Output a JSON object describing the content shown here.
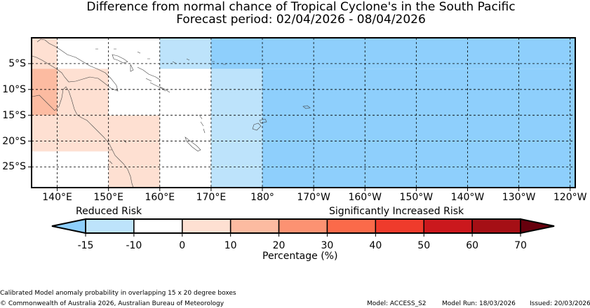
{
  "title": {
    "line1": "Difference from normal chance of Tropical Cyclone's in the South Pacific",
    "line2": "Forecast period: 02/04/2026 - 08/04/2026"
  },
  "map": {
    "lon_range": [
      135,
      241
    ],
    "lat_range": [
      0,
      -29
    ],
    "lon_ticks": [
      {
        "lon": 140,
        "label": "140°E"
      },
      {
        "lon": 150,
        "label": "150°E"
      },
      {
        "lon": 160,
        "label": "160°E"
      },
      {
        "lon": 170,
        "label": "170°E"
      },
      {
        "lon": 180,
        "label": "180°"
      },
      {
        "lon": 190,
        "label": "170°W"
      },
      {
        "lon": 200,
        "label": "160°W"
      },
      {
        "lon": 210,
        "label": "150°W"
      },
      {
        "lon": 220,
        "label": "140°W"
      },
      {
        "lon": 230,
        "label": "130°W"
      },
      {
        "lon": 240,
        "label": "120°W"
      }
    ],
    "lat_ticks": [
      {
        "lat": -5,
        "label": "5°S"
      },
      {
        "lat": -10,
        "label": "10°S"
      },
      {
        "lat": -15,
        "label": "15°S"
      },
      {
        "lat": -20,
        "label": "20°S"
      },
      {
        "lat": -25,
        "label": "25°S"
      }
    ],
    "cells": [
      {
        "lon0": 135,
        "lon1": 140,
        "lat0": 0,
        "lat1": -6,
        "value": 5
      },
      {
        "lon0": 135,
        "lon1": 140,
        "lat0": -6,
        "lat1": -15,
        "value": 15
      },
      {
        "lon0": 140,
        "lon1": 150,
        "lat0": -6,
        "lat1": -15,
        "value": 5
      },
      {
        "lon0": 135,
        "lon1": 150,
        "lat0": -15,
        "lat1": -22,
        "value": 5
      },
      {
        "lon0": 150,
        "lon1": 160,
        "lat0": -15,
        "lat1": -29,
        "value": 5
      },
      {
        "lon0": 160,
        "lon1": 170,
        "lat0": 0,
        "lat1": -6,
        "value": -12
      },
      {
        "lon0": 170,
        "lon1": 180,
        "lat0": -6,
        "lat1": -29,
        "value": -12
      },
      {
        "lon0": 170,
        "lon1": 241,
        "lat0": 0,
        "lat1": -6,
        "value": -18
      },
      {
        "lon0": 180,
        "lon1": 241,
        "lat0": -6,
        "lat1": -29,
        "value": -18
      }
    ]
  },
  "colorbar": {
    "reduced_label": "Reduced Risk",
    "increased_label": "Significantly Increased Risk",
    "tick_labels": [
      "-15",
      "-10",
      "0",
      "10",
      "20",
      "30",
      "40",
      "50",
      "60",
      "70"
    ],
    "bin_colors": [
      "#bde3fb",
      "#ffffff",
      "#fee0d2",
      "#fcbba1",
      "#fc9272",
      "#fb6a4a",
      "#ef3b2c",
      "#cb181d",
      "#a50f15"
    ],
    "under_color": "#8ecffc",
    "over_color": "#67000d",
    "axis_label": "Percentage (%)"
  },
  "footer": {
    "note": "Calibrated Model anomaly probability in overlapping 15 x 20 degree boxes",
    "copyright": "© Commonwealth of Australia 2026, Australian Bureau of Meteorology",
    "model": "Model: ACCESS_S2",
    "model_run": "Model Run: 18/03/2026",
    "issued": "Issued: 20/03/2026"
  }
}
